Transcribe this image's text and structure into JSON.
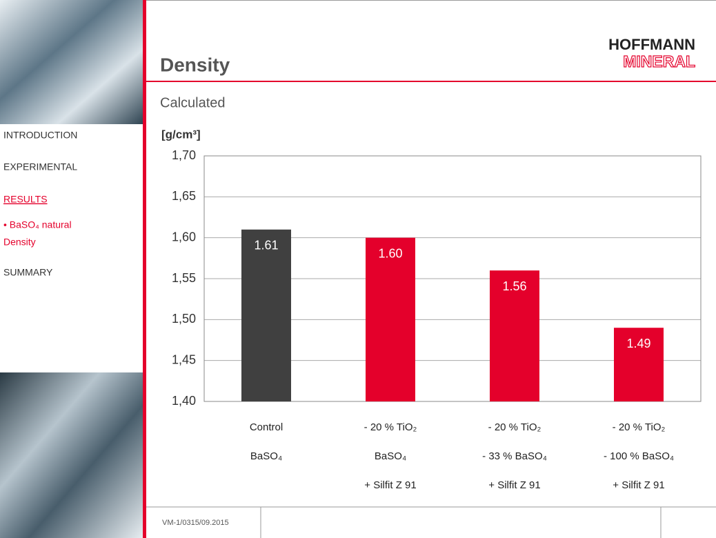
{
  "sidebar": {
    "nav": [
      "INTRODUCTION",
      "EXPERIMENTAL",
      "RESULTS",
      "• BaSO₄ natural",
      "Density",
      "SUMMARY"
    ]
  },
  "header": {
    "title": "Density",
    "logo": [
      "HOFFMANN",
      "MINERAL"
    ]
  },
  "footer": {
    "code": "VM-1/0315/09.2015"
  },
  "chart_data": {
    "type": "bar",
    "title": "Calculated",
    "y_label": "[g/cm³]",
    "categories": [
      [
        "Control",
        "BaSO₄"
      ],
      [
        "- 20 % TiO₂",
        "BaSO₄",
        "+ Silfit Z 91"
      ],
      [
        "- 20 % TiO₂",
        "- 33 % BaSO₄",
        "+ Silfit Z 91"
      ],
      [
        "- 20 % TiO₂",
        "- 100 % BaSO₄",
        "+ Silfit Z 91"
      ]
    ],
    "values": [
      1.61,
      1.6,
      1.56,
      1.49
    ],
    "value_labels": [
      "1.61",
      "1.60",
      "1.56",
      "1.49"
    ],
    "colors": [
      "#404040",
      "#e4002b",
      "#e4002b",
      "#e4002b"
    ],
    "ylim": [
      1.4,
      1.7
    ],
    "yticks": [
      {
        "value": 1.4,
        "label": "1,40"
      },
      {
        "value": 1.45,
        "label": "1,45"
      },
      {
        "value": 1.5,
        "label": "1,50"
      },
      {
        "value": 1.55,
        "label": "1,55"
      },
      {
        "value": 1.6,
        "label": "1,60"
      },
      {
        "value": 1.65,
        "label": "1,65"
      },
      {
        "value": 1.7,
        "label": "1,70"
      }
    ],
    "grid": true
  }
}
